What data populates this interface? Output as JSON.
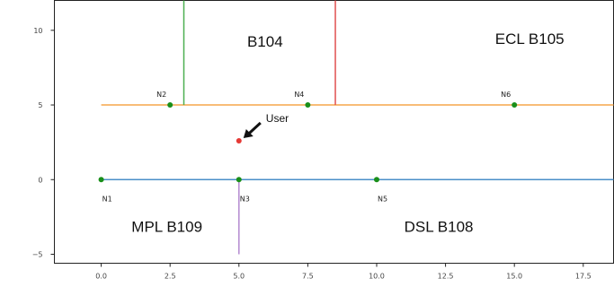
{
  "chart_data": {
    "type": "scatter",
    "xlim": [
      -1.7,
      18.6
    ],
    "ylim": [
      -5.6,
      12.0
    ],
    "x_ticks": [
      0.0,
      2.5,
      5.0,
      7.5,
      10.0,
      12.5,
      15.0,
      17.5
    ],
    "x_tick_labels": [
      "0.0",
      "2.5",
      "5.0",
      "7.5",
      "10.0",
      "12.5",
      "15.0",
      "17.5"
    ],
    "y_ticks": [
      10,
      5,
      0,
      -5
    ],
    "y_tick_labels": [
      "10",
      "5",
      "0",
      "−5"
    ],
    "grid": false,
    "segments": [
      {
        "name": "corridor-upper",
        "color": "#f5a64a",
        "x": [
          0,
          18.6
        ],
        "y": [
          5,
          5
        ]
      },
      {
        "name": "corridor-lower",
        "color": "#4a8fc8",
        "x": [
          0,
          18.6
        ],
        "y": [
          0,
          0
        ]
      },
      {
        "name": "wall-green",
        "color": "#4caf50",
        "x": [
          3,
          3
        ],
        "y": [
          5,
          12
        ]
      },
      {
        "name": "wall-red",
        "color": "#e05050",
        "x": [
          8.5,
          8.5
        ],
        "y": [
          5,
          12
        ]
      },
      {
        "name": "wall-purple",
        "color": "#b48ad0",
        "x": [
          5,
          5
        ],
        "y": [
          0,
          -5
        ]
      }
    ],
    "nodes": [
      {
        "label": "N1",
        "x": 0.0,
        "y": 0,
        "label_pos": "below"
      },
      {
        "label": "N2",
        "x": 2.5,
        "y": 5,
        "label_pos": "above-left"
      },
      {
        "label": "N3",
        "x": 5.0,
        "y": 0,
        "label_pos": "below"
      },
      {
        "label": "N4",
        "x": 7.5,
        "y": 5,
        "label_pos": "above-left"
      },
      {
        "label": "N5",
        "x": 10.0,
        "y": 0,
        "label_pos": "below"
      },
      {
        "label": "N6",
        "x": 15.0,
        "y": 5,
        "label_pos": "above-left"
      }
    ],
    "node_color": "#1a8f1a",
    "user": {
      "label": "User",
      "x": 5.0,
      "y": 2.6,
      "color": "#e53935",
      "arrow_color": "#111111"
    },
    "rooms": [
      {
        "label": "B104",
        "x": 5.3,
        "y": 8.9
      },
      {
        "label": "ECL B105",
        "x": 14.3,
        "y": 9.1
      },
      {
        "label": "MPL B109",
        "x": 1.1,
        "y": -3.5
      },
      {
        "label": "DSL B108",
        "x": 11.0,
        "y": -3.5
      }
    ]
  }
}
